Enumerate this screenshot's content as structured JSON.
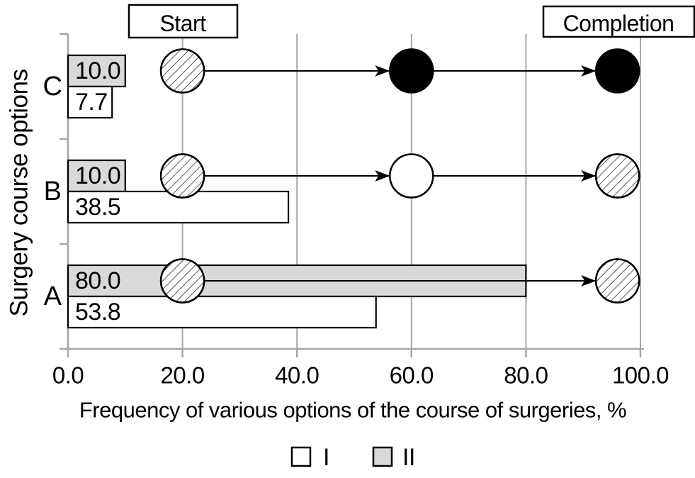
{
  "page": {
    "background": "#ffffff"
  },
  "colors": {
    "grid": "#a6a6a6",
    "axis": "#a6a6a6",
    "ink": "#000000",
    "bar_gray": "#d9d9d9",
    "bar_white": "#ffffff"
  },
  "y_axis": {
    "label": "Surgery course options"
  },
  "x_axis": {
    "label": "Frequency of various options of the course of surgeries, %",
    "ticks": [
      "0.0",
      "20.0",
      "40.0",
      "60.0",
      "80.0",
      "100.0"
    ],
    "tick_values": [
      0,
      20,
      40,
      60,
      80,
      100
    ]
  },
  "legend": [
    {
      "label": "I",
      "fill": "#ffffff"
    },
    {
      "label": "II",
      "fill": "#d9d9d9"
    }
  ],
  "chart_data": {
    "type": "bar",
    "orientation": "horizontal",
    "title": "",
    "xlabel": "Frequency of various options of the course of surgeries, %",
    "ylabel": "Surgery course options",
    "xlim": [
      0,
      100
    ],
    "grid": true,
    "legend_position": "bottom",
    "categories": [
      "C",
      "B",
      "A"
    ],
    "series": [
      {
        "name": "II",
        "fill": "#d9d9d9",
        "values": [
          10.0,
          10.0,
          80.0
        ],
        "labels": [
          "10.0",
          "10.0",
          "80.0"
        ]
      },
      {
        "name": "I",
        "fill": "#ffffff",
        "values": [
          7.7,
          38.5,
          53.8
        ],
        "labels": [
          "7.7",
          "38.5",
          "53.8"
        ]
      }
    ],
    "annotations": {
      "start": "Start",
      "completion": "Completion"
    },
    "course_markers": {
      "C": [
        {
          "x": 20,
          "style": "hatched"
        },
        {
          "x": 60,
          "style": "black"
        },
        {
          "x": 96,
          "style": "black"
        }
      ],
      "B": [
        {
          "x": 20,
          "style": "hatched"
        },
        {
          "x": 60,
          "style": "open"
        },
        {
          "x": 96,
          "style": "hatched"
        }
      ],
      "A": [
        {
          "x": 20,
          "style": "hatched"
        },
        {
          "x": 96,
          "style": "hatched"
        }
      ]
    }
  }
}
